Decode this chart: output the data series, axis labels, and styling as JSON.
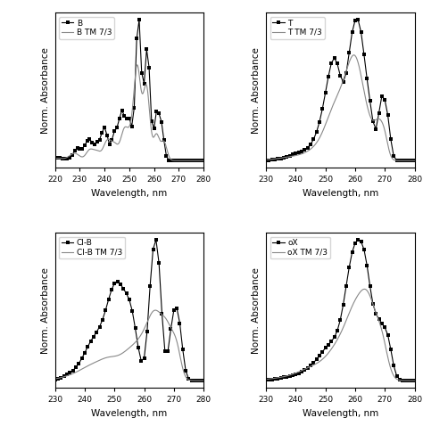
{
  "panels": [
    {
      "legend": [
        "B",
        "B TM 7/3"
      ],
      "xmin": 220,
      "xmax": 280,
      "xticks": [
        220,
        230,
        240,
        250,
        260,
        270,
        280
      ],
      "xlabel": "Wavelength, nm",
      "ylabel": "Norm. Absorbance"
    },
    {
      "legend": [
        "T",
        "T TM 7/3"
      ],
      "xmin": 230,
      "xmax": 280,
      "xticks": [
        230,
        240,
        250,
        260,
        270,
        280
      ],
      "xlabel": "Wavelength, nm",
      "ylabel": "Norm. Absorbance"
    },
    {
      "legend": [
        "Cl-B",
        "Cl-B TM 7/3"
      ],
      "xmin": 230,
      "xmax": 280,
      "xticks": [
        230,
        240,
        250,
        260,
        270,
        280
      ],
      "xlabel": "Wavelength, nm",
      "ylabel": "Norm. Absorbance"
    },
    {
      "legend": [
        "oX",
        "oX TM 7/3"
      ],
      "xmin": 230,
      "xmax": 280,
      "xticks": [
        230,
        240,
        250,
        260,
        270,
        280
      ],
      "xlabel": "Wavelength, nm",
      "ylabel": "Norm. Absorbance"
    }
  ],
  "line_color_dots": "#000000",
  "line_color_solid": "#888888",
  "markersize": 2.5,
  "linewidth_dots": 0.8,
  "linewidth_solid": 0.8,
  "tick_fontsize": 6.5,
  "label_fontsize": 7.5,
  "legend_fontsize": 6.5
}
